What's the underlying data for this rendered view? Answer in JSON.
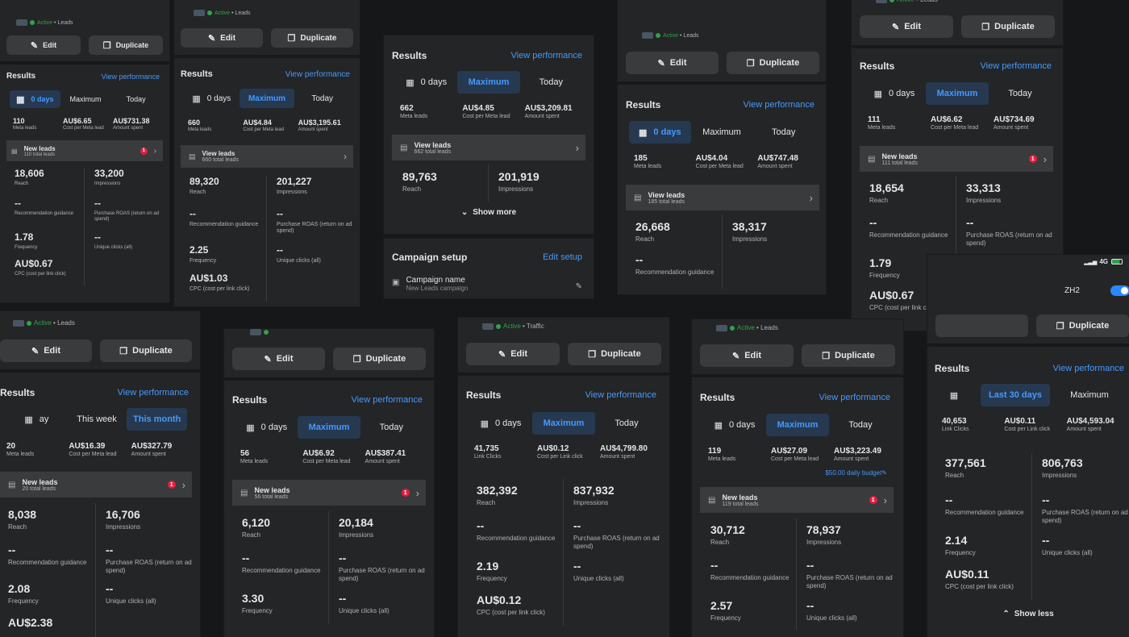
{
  "status": {
    "active": "Active",
    "sep": "•",
    "leads": "Leads",
    "traffic": "Traffic"
  },
  "buttons": {
    "edit": "Edit",
    "duplicate": "Duplicate"
  },
  "results": {
    "title": "Results",
    "view_performance": "View performance"
  },
  "tabs": {
    "days30": "0 days",
    "last30": "Last 30 days",
    "maximum": "Maximum",
    "today": "Today",
    "day": "ay",
    "this_week": "This week",
    "this_month": "This month"
  },
  "labels": {
    "meta_leads": "Meta leads",
    "cost_per_meta_lead": "Cost per Meta lead",
    "amount_spent": "Amount spent",
    "link_clicks": "Link Clicks",
    "cost_per_link_click": "Cost per Link click",
    "new_leads": "New leads",
    "view_leads": "View leads",
    "reach": "Reach",
    "impressions": "Impressions",
    "recommendation": "Recommendation guidance",
    "purchase_roas": "Purchase ROAS (return on ad spend)",
    "frequency": "Frequency",
    "unique_clicks": "Unique clicks (all)",
    "cpc": "CPC (cost per link click)",
    "dash": "--",
    "show_more": "Show more",
    "show_less": "Show less",
    "campaign_setup": "Campaign setup",
    "edit_setup": "Edit setup",
    "campaign_name": "Campaign name",
    "campaign_name_value": "New Leads campaign"
  },
  "cards": [
    {
      "m1": "110",
      "m2": "AU$6.65",
      "m3": "AU$731.38",
      "total": "110 total leads",
      "badge": "1",
      "reach": "18,606",
      "impressions": "33,200",
      "frequency": "1.78",
      "cpc": "AU$0.67"
    },
    {
      "m1": "660",
      "m2": "AU$4.84",
      "m3": "AU$3,195.61",
      "total": "660 total leads",
      "reach": "89,320",
      "impressions": "201,227",
      "frequency": "2.25",
      "cpc": "AU$1.03"
    },
    {
      "m1": "662",
      "m2": "AU$4.85",
      "m3": "AU$3,209.81",
      "total": "662 total leads",
      "reach": "89,763",
      "impressions": "201,919"
    },
    {
      "m1": "185",
      "m2": "AU$4.04",
      "m3": "AU$747.48",
      "total": "185 total leads",
      "reach": "26,668",
      "impressions": "38,317"
    },
    {
      "m1": "111",
      "m2": "AU$6.62",
      "m3": "AU$734.69",
      "total": "111 total leads",
      "badge": "1",
      "reach": "18,654",
      "impressions": "33,313",
      "frequency": "1.79",
      "cpc": "AU$0.67"
    },
    {
      "m1": "20",
      "m2": "AU$16.39",
      "m3": "AU$327.79",
      "total": "20 total leads",
      "badge": "1",
      "reach": "8,038",
      "impressions": "16,706",
      "frequency": "2.08",
      "cpc": "AU$2.38"
    },
    {
      "m1": "56",
      "m2": "AU$6.92",
      "m3": "AU$387.41",
      "total": "56 total leads",
      "badge": "1",
      "reach": "6,120",
      "impressions": "20,184",
      "frequency": "3.30"
    },
    {
      "m1": "41,735",
      "m2": "AU$0.12",
      "m3": "AU$4,799.80",
      "reach": "382,392",
      "impressions": "837,932",
      "frequency": "2.19",
      "cpc": "AU$0.12"
    },
    {
      "m1": "119",
      "m2": "AU$27.09",
      "m3": "AU$3,223.49",
      "budget": "$50.00 daily budget",
      "total": "119 total leads",
      "badge": "1",
      "reach": "30,712",
      "impressions": "78,937",
      "frequency": "2.57"
    },
    {
      "m1": "40,653",
      "m2": "AU$0.11",
      "m3": "AU$4,593.04",
      "reach": "377,561",
      "impressions": "806,763",
      "frequency": "2.14",
      "cpc": "AU$0.11"
    }
  ],
  "phone": {
    "signal": "4G",
    "name": "ZH2"
  }
}
